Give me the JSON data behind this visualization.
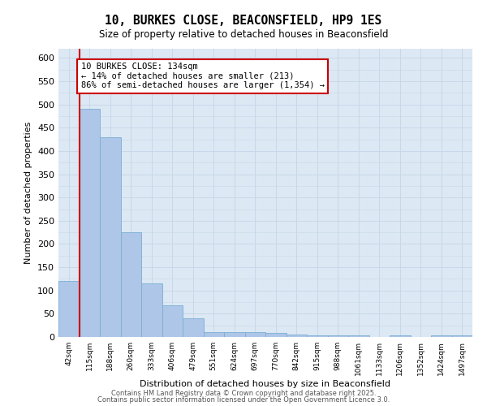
{
  "title": "10, BURKES CLOSE, BEACONSFIELD, HP9 1ES",
  "subtitle": "Size of property relative to detached houses in Beaconsfield",
  "xlabel": "Distribution of detached houses by size in Beaconsfield",
  "ylabel": "Number of detached properties",
  "bar_values": [
    120,
    490,
    430,
    225,
    115,
    68,
    40,
    10,
    10,
    10,
    8,
    5,
    4,
    3,
    3,
    0,
    3,
    0,
    3,
    3
  ],
  "bar_labels": [
    "42sqm",
    "115sqm",
    "188sqm",
    "260sqm",
    "333sqm",
    "406sqm",
    "479sqm",
    "551sqm",
    "624sqm",
    "697sqm",
    "770sqm",
    "842sqm",
    "915sqm",
    "988sqm",
    "1061sqm",
    "1133sqm",
    "1206sqm",
    "1352sqm",
    "1424sqm",
    "1497sqm"
  ],
  "bar_color": "#aec6e8",
  "bar_edgecolor": "#7bafd4",
  "grid_color": "#c8d8e8",
  "background_color": "#dce8f4",
  "vline_x": 0.5,
  "vline_color": "#cc0000",
  "annotation_text": "10 BURKES CLOSE: 134sqm\n← 14% of detached houses are smaller (213)\n86% of semi-detached houses are larger (1,354) →",
  "annotation_box_color": "#cc0000",
  "ylim": [
    0,
    620
  ],
  "yticks": [
    0,
    50,
    100,
    150,
    200,
    250,
    300,
    350,
    400,
    450,
    500,
    550,
    600
  ],
  "footer1": "Contains HM Land Registry data © Crown copyright and database right 2025.",
  "footer2": "Contains public sector information licensed under the Open Government Licence 3.0."
}
